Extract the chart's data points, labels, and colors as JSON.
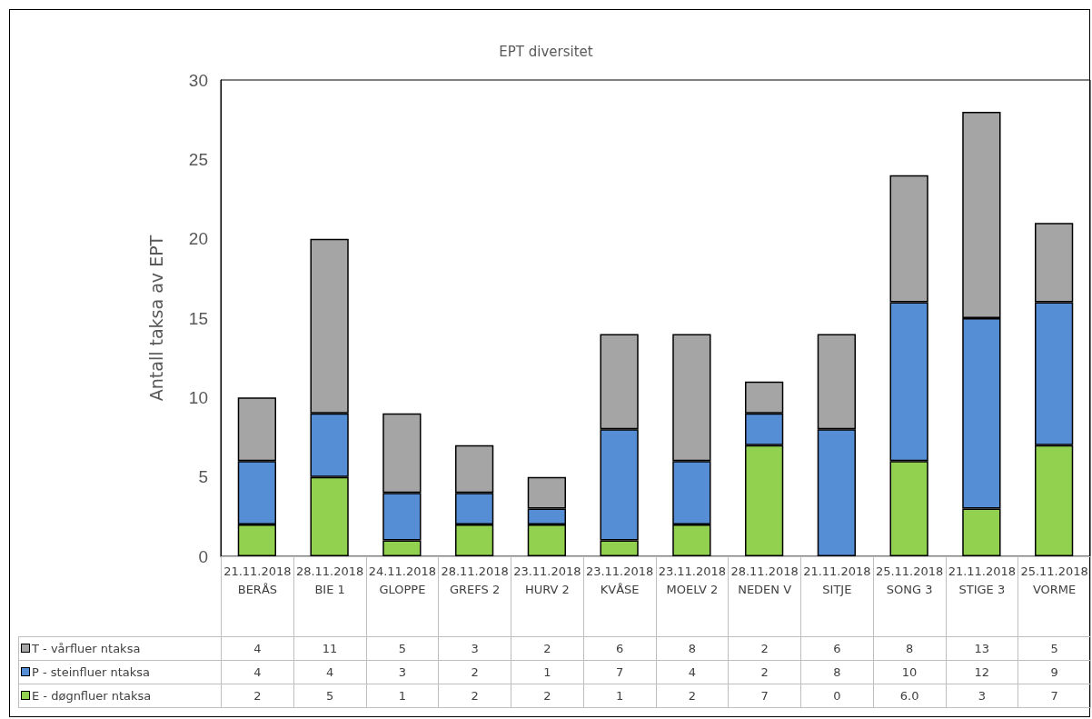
{
  "chart_data": {
    "type": "bar",
    "title": "EPT diversitet",
    "ylabel": "Antall taksa av EPT",
    "categories": [
      "21.11.2018\nBERÅS",
      "28.11.2018\nBIE 1",
      "24.11.2018\nGLOPPE",
      "28.11.2018\nGREFS 2",
      "23.11.2018\nHURV 2",
      "23.11.2018\nKVÅSE",
      "23.11.2018\nMOELV 2",
      "28.11.2018\nNEDEN V",
      "21.11.2018\nSITJE",
      "25.11.2018\nSONG 3",
      "21.11.2018\nSTIGE 3",
      "25.11.2018\nVORME"
    ],
    "series": [
      {
        "name": "E - døgnfluer ntaksa",
        "color": "#92d050",
        "values": [
          2,
          5,
          1,
          2,
          2,
          1,
          2,
          7,
          0,
          6,
          3,
          7
        ],
        "value_labels": [
          "2",
          "5",
          "1",
          "2",
          "2",
          "1",
          "2",
          "7",
          "0",
          "6.0",
          "3",
          "7"
        ]
      },
      {
        "name": "P - steinfluer ntaksa",
        "color": "#558ed5",
        "values": [
          4,
          4,
          3,
          2,
          1,
          7,
          4,
          2,
          8,
          10,
          12,
          9
        ],
        "value_labels": [
          "4",
          "4",
          "3",
          "2",
          "1",
          "7",
          "4",
          "2",
          "8",
          "10",
          "12",
          "9"
        ]
      },
      {
        "name": "T - vårfluer ntaksa",
        "color": "#a5a5a5",
        "values": [
          4,
          11,
          5,
          3,
          2,
          6,
          8,
          2,
          6,
          8,
          13,
          5
        ],
        "value_labels": [
          "4",
          "11",
          "5",
          "3",
          "2",
          "6",
          "8",
          "2",
          "6",
          "8",
          "13",
          "5"
        ]
      }
    ],
    "stacked": true,
    "ylim": [
      0,
      30
    ],
    "yticks": [
      0,
      5,
      10,
      15,
      20,
      25,
      30
    ],
    "grid": false,
    "legend": "bottom"
  }
}
